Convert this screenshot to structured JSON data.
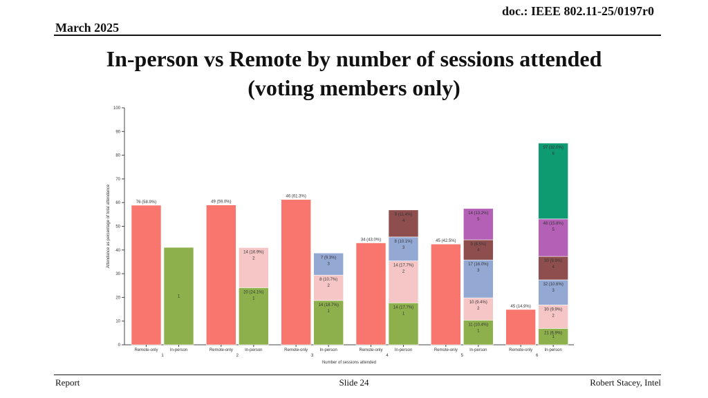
{
  "header": {
    "doc_id": "doc.: IEEE 802.11-25/0197r0",
    "date": "March 2025",
    "title_line1": "In-person vs Remote by number of sessions attended",
    "title_line2": "(voting members only)"
  },
  "footer": {
    "left": "Report",
    "center": "Slide 24",
    "right": "Robert Stacey, Intel"
  },
  "chart_data": {
    "type": "bar",
    "stacked": true,
    "title": "",
    "xlabel": "Number of sessions attended",
    "ylabel": "Attendance as percentage of total attendance",
    "ylim": [
      0,
      100
    ],
    "yticks": [
      0,
      10,
      20,
      30,
      40,
      50,
      60,
      70,
      80,
      90,
      100
    ],
    "grid": false,
    "colors": {
      "remote": "#f8766d",
      "seg1": "#8db04d",
      "seg2": "#f6c6c6",
      "seg3": "#93a9d4",
      "seg4": "#8e4e4e",
      "seg5": "#b460b6",
      "seg6": "#0f9b72"
    },
    "groups": [
      {
        "label": "1",
        "bars": [
          {
            "label": "Remote-only",
            "segments": [
              {
                "value": 58.9,
                "label": "76 (58.9%)",
                "level": "",
                "color": "remote"
              }
            ]
          },
          {
            "label": "In-person",
            "segments": [
              {
                "value": 41.1,
                "label": "",
                "level": "1",
                "color": "seg1"
              }
            ]
          }
        ]
      },
      {
        "label": "2",
        "bars": [
          {
            "label": "Remote-only",
            "segments": [
              {
                "value": 59.0,
                "label": "49 (59.0%)",
                "level": "",
                "color": "remote"
              }
            ]
          },
          {
            "label": "In-person",
            "segments": [
              {
                "value": 24.1,
                "label": "20 (24.1%)",
                "level": "1",
                "color": "seg1"
              },
              {
                "value": 16.9,
                "label": "14 (16.9%)",
                "level": "2",
                "color": "seg2"
              }
            ]
          }
        ]
      },
      {
        "label": "3",
        "bars": [
          {
            "label": "Remote-only",
            "segments": [
              {
                "value": 61.3,
                "label": "46 (61.3%)",
                "level": "",
                "color": "remote"
              }
            ]
          },
          {
            "label": "In-person",
            "segments": [
              {
                "value": 18.7,
                "label": "14 (18.7%)",
                "level": "1",
                "color": "seg1"
              },
              {
                "value": 10.7,
                "label": "8 (10.7%)",
                "level": "2",
                "color": "seg2"
              },
              {
                "value": 9.3,
                "label": "7 (9.3%)",
                "level": "3",
                "color": "seg3"
              }
            ]
          }
        ]
      },
      {
        "label": "4",
        "bars": [
          {
            "label": "Remote-only",
            "segments": [
              {
                "value": 43.0,
                "label": "34 (43.0%)",
                "level": "",
                "color": "remote"
              }
            ]
          },
          {
            "label": "In-person",
            "segments": [
              {
                "value": 17.7,
                "label": "14 (17.7%)",
                "level": "1",
                "color": "seg1"
              },
              {
                "value": 17.7,
                "label": "14 (17.7%)",
                "level": "2",
                "color": "seg2"
              },
              {
                "value": 10.1,
                "label": "8 (10.1%)",
                "level": "3",
                "color": "seg3"
              },
              {
                "value": 11.4,
                "label": "9 (11.4%)",
                "level": "4",
                "color": "seg4"
              }
            ]
          }
        ]
      },
      {
        "label": "5",
        "bars": [
          {
            "label": "Remote-only",
            "segments": [
              {
                "value": 42.5,
                "label": "45 (42.5%)",
                "level": "",
                "color": "remote"
              }
            ]
          },
          {
            "label": "In-person",
            "segments": [
              {
                "value": 10.4,
                "label": "11 (10.4%)",
                "level": "1",
                "color": "seg1"
              },
              {
                "value": 9.4,
                "label": "10 (9.4%)",
                "level": "2",
                "color": "seg2"
              },
              {
                "value": 16.0,
                "label": "17 (16.0%)",
                "level": "3",
                "color": "seg3"
              },
              {
                "value": 8.5,
                "label": "9 (8.5%)",
                "level": "4",
                "color": "seg4"
              },
              {
                "value": 13.2,
                "label": "14 (13.2%)",
                "level": "5",
                "color": "seg5"
              }
            ]
          }
        ]
      },
      {
        "label": "6",
        "bars": [
          {
            "label": "Remote-only",
            "segments": [
              {
                "value": 14.9,
                "label": "45 (14.9%)",
                "level": "",
                "color": "remote"
              }
            ]
          },
          {
            "label": "In-person",
            "segments": [
              {
                "value": 6.9,
                "label": "21 (6.9%)",
                "level": "1",
                "color": "seg1"
              },
              {
                "value": 9.9,
                "label": "30 (9.9%)",
                "level": "2",
                "color": "seg2"
              },
              {
                "value": 10.6,
                "label": "32 (10.6%)",
                "level": "3",
                "color": "seg3"
              },
              {
                "value": 9.9,
                "label": "30 (9.9%)",
                "level": "4",
                "color": "seg4"
              },
              {
                "value": 15.8,
                "label": "48 (15.8%)",
                "level": "5",
                "color": "seg5"
              },
              {
                "value": 32.0,
                "label": "97 (32.0%)",
                "level": "6",
                "color": "seg6"
              }
            ]
          }
        ]
      }
    ]
  }
}
